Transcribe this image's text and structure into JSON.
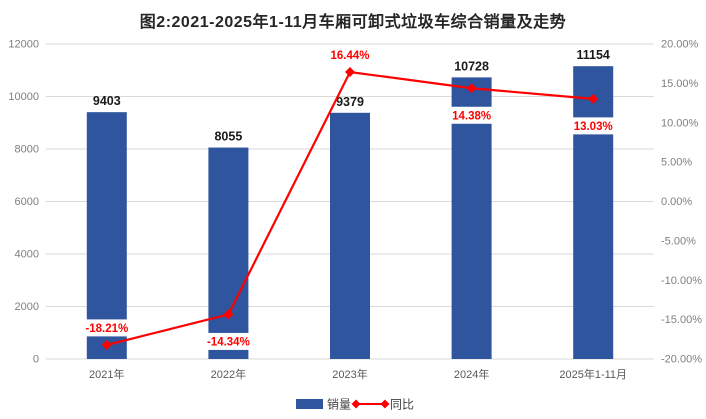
{
  "title": "图2:2021-2025年1-11月车厢可卸式垃圾车综合销量及走势",
  "chart_data": {
    "type": "bar",
    "subtype": "bar-line-combo",
    "categories": [
      "2021年",
      "2022年",
      "2023年",
      "2024年",
      "2025年1-11月"
    ],
    "series": [
      {
        "name": "销量",
        "chart_type": "bar",
        "axis": "left",
        "color": "#2E559D",
        "values": [
          9403,
          8055,
          9379,
          10728,
          11154
        ],
        "value_labels": [
          "9403",
          "8055",
          "9379",
          "10728",
          "11154"
        ]
      },
      {
        "name": "同比",
        "chart_type": "line",
        "axis": "right",
        "color": "#FF0000",
        "marker": "diamond",
        "values": [
          -18.21,
          -14.34,
          16.44,
          14.38,
          13.03
        ],
        "value_labels": [
          "-18.21%",
          "-14.34%",
          "16.44%",
          "14.38%",
          "13.03%"
        ],
        "label_side": [
          "above",
          "below",
          "above",
          "below",
          "below"
        ]
      }
    ],
    "left_axis": {
      "min": 0,
      "max": 12000,
      "ticks": [
        "12000",
        "10000",
        "8000",
        "6000",
        "4000",
        "2000",
        "0"
      ]
    },
    "right_axis": {
      "min": -20,
      "max": 20,
      "ticks": [
        "20.00%",
        "15.00%",
        "10.00%",
        "5.00%",
        "0.00%",
        "-5.00%",
        "-10.00%",
        "-15.00%",
        "-20.00%"
      ]
    },
    "legend": {
      "position": "bottom-center",
      "items": [
        "销量",
        "同比"
      ]
    },
    "grid": "horizontal",
    "colors": {
      "bar": "#2E559D",
      "line": "#FF0000",
      "pct_label": "#FF0000",
      "value_label": "#1A1A1A",
      "grid_line": "#D9D9D9",
      "axis_text": "#7F7F7F",
      "category_text": "#595959",
      "legend_text": "#404040",
      "label_bg": "#FFFFFF",
      "background": "#FFFFFF"
    }
  }
}
